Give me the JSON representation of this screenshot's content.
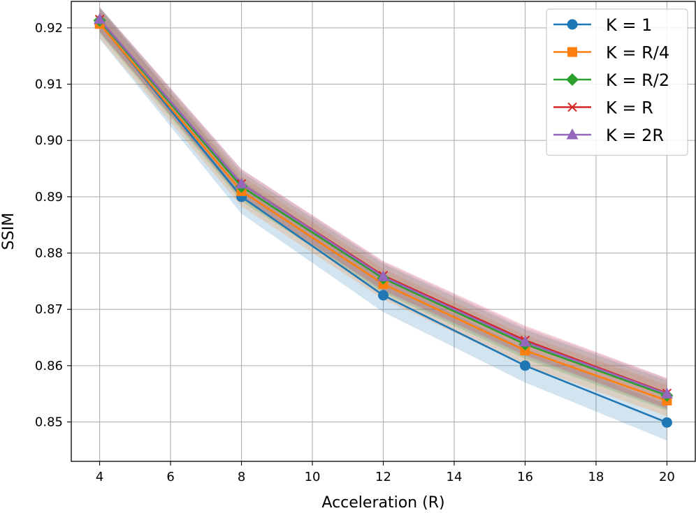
{
  "chart_data": {
    "type": "line",
    "title": "",
    "xlabel": "Acceleration (R)",
    "ylabel": "SSIM",
    "xlim": [
      3.2,
      20.8
    ],
    "ylim": [
      0.843,
      0.9247
    ],
    "xticks": [
      4,
      6,
      8,
      10,
      12,
      14,
      16,
      18,
      20
    ],
    "yticks": [
      0.85,
      0.86,
      0.87,
      0.88,
      0.89,
      0.9,
      0.91,
      0.92
    ],
    "ytick_labels": [
      "0.85",
      "0.86",
      "0.87",
      "0.88",
      "0.89",
      "0.90",
      "0.91",
      "0.92"
    ],
    "grid": true,
    "legend_position": "top-right",
    "x": [
      4,
      8,
      12,
      16,
      20
    ],
    "series": [
      {
        "name": "K = 1",
        "color": "#1f77b4",
        "marker": "circle",
        "values": [
          0.9208,
          0.89,
          0.8725,
          0.86,
          0.8499
        ],
        "band": [
          0.0028,
          0.003,
          0.003,
          0.003,
          0.0032
        ]
      },
      {
        "name": "K = R/4",
        "color": "#ff7f0e",
        "marker": "square",
        "values": [
          0.9207,
          0.891,
          0.8745,
          0.8627,
          0.8538
        ],
        "band": [
          0.0025,
          0.0027,
          0.0027,
          0.0027,
          0.0028
        ]
      },
      {
        "name": "K = R/2",
        "color": "#2ca02c",
        "marker": "diamond",
        "values": [
          0.9213,
          0.8918,
          0.8755,
          0.8638,
          0.8547
        ],
        "band": [
          0.0023,
          0.0026,
          0.0026,
          0.0026,
          0.0027
        ]
      },
      {
        "name": "K = R",
        "color": "#d62728",
        "marker": "x",
        "values": [
          0.9215,
          0.8923,
          0.876,
          0.8645,
          0.8551
        ],
        "band": [
          0.0022,
          0.0026,
          0.0026,
          0.0026,
          0.0027
        ]
      },
      {
        "name": "K = 2R",
        "color": "#9467bd",
        "marker": "triangle",
        "values": [
          0.9215,
          0.8923,
          0.8758,
          0.8642,
          0.855
        ],
        "band": [
          0.0022,
          0.0026,
          0.0026,
          0.0026,
          0.0027
        ]
      }
    ]
  }
}
